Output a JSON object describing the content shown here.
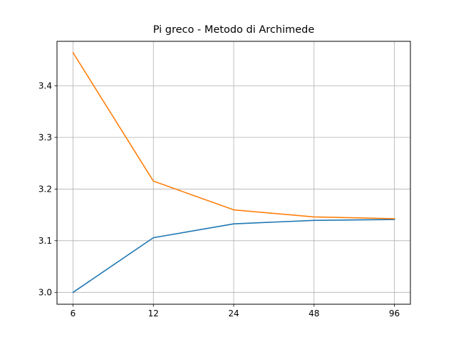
{
  "chart_data": {
    "type": "line",
    "title": "Pi greco - Metodo di Archimede",
    "xlabel": "",
    "ylabel": "",
    "x": [
      6,
      12,
      24,
      48,
      96
    ],
    "x_tick_labels": [
      "6",
      "12",
      "24",
      "48",
      "96"
    ],
    "y_ticks": [
      3.0,
      3.1,
      3.2,
      3.3,
      3.4
    ],
    "y_tick_labels": [
      "3.0",
      "3.1",
      "3.2",
      "3.3",
      "3.4"
    ],
    "ylim": [
      2.977,
      3.486
    ],
    "grid": true,
    "series": [
      {
        "color": "#1f77b4",
        "values": [
          3.0,
          3.1058,
          3.1326,
          3.1394,
          3.141
        ]
      },
      {
        "color": "#ff7f0e",
        "values": [
          3.4641,
          3.2154,
          3.1597,
          3.146,
          3.1427
        ]
      }
    ]
  }
}
